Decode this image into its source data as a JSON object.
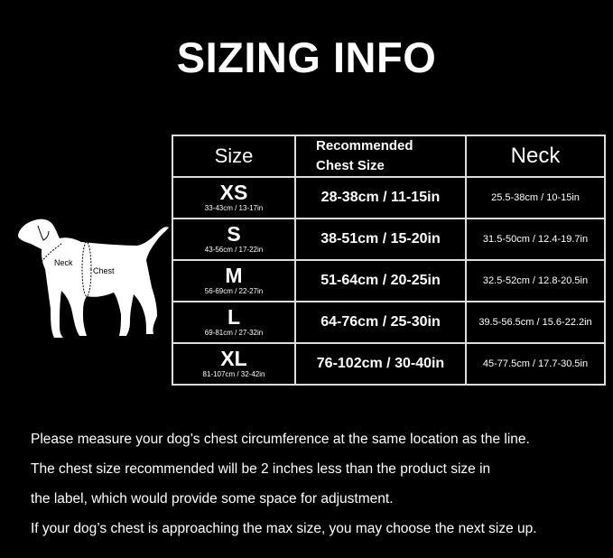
{
  "title": "SIZING INFO",
  "table": {
    "headers": {
      "size": "Size",
      "chest_line1": "Recommended",
      "chest_line2": "Chest Size",
      "neck": "Neck"
    },
    "rows": [
      {
        "size": "XS",
        "size_range": "33-43cm / 13-17in",
        "chest": "28-38cm / 11-15in",
        "neck": "25.5-38cm / 10-15in"
      },
      {
        "size": "S",
        "size_range": "43-56cm / 17-22in",
        "chest": "38-51cm / 15-20in",
        "neck": "31.5-50cm / 12.4-19.7in"
      },
      {
        "size": "M",
        "size_range": "56-69cm / 22-27in",
        "chest": "51-64cm / 20-25in",
        "neck": "32.5-52cm / 12.8-20.5in"
      },
      {
        "size": "L",
        "size_range": "69-81cm / 27-32in",
        "chest": "64-76cm / 25-30in",
        "neck": "39.5-56.5cm / 15.6-22.2in"
      },
      {
        "size": "XL",
        "size_range": "81-107cm / 32-42in",
        "chest": "76-102cm / 30-40in",
        "neck": "45-77.5cm / 17.7-30.5in"
      }
    ]
  },
  "diagram": {
    "neck_label": "Neck",
    "chest_label": "Chest"
  },
  "notes": [
    "Please measure your dog’s chest circumference at the same location as the line.",
    "The chest size recommended will be 2 inches less than the product size in",
    "the label, which would provide some space for adjustment.",
    "If your dog’s chest is approaching the max size, you may choose the next size up."
  ]
}
